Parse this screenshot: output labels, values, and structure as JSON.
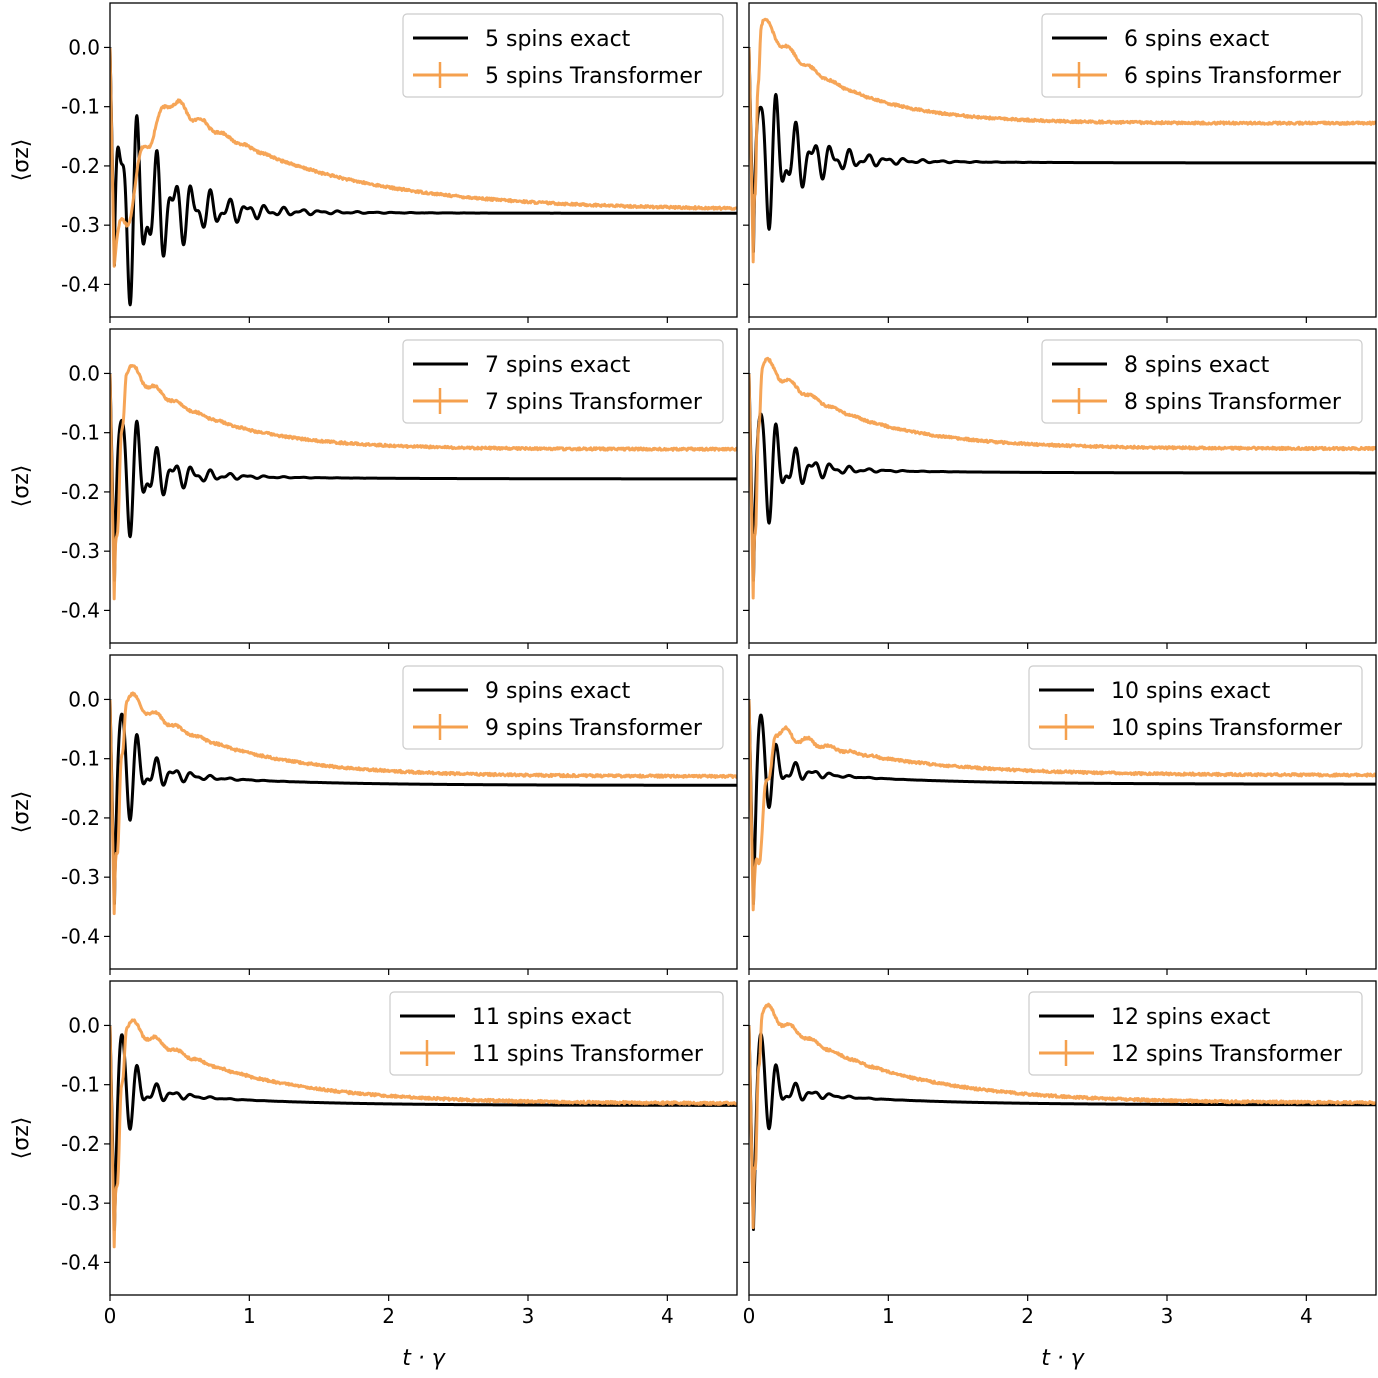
{
  "figure": {
    "xlabel": "t · γ",
    "ylabel": "⟨σz⟩",
    "xticks": [
      0,
      1,
      2,
      3,
      4
    ],
    "yticks": [
      0.0,
      -0.1,
      -0.2,
      -0.3,
      -0.4
    ],
    "ytick_labels": [
      "0.0",
      "-0.1",
      "-0.2",
      "-0.3",
      "-0.4"
    ]
  },
  "colors": {
    "exact": "#000000",
    "transformer": "#f5a04e"
  },
  "chart_data": [
    {
      "type": "line",
      "panel": "5 spins",
      "n": 5,
      "xlim": [
        0,
        4.5
      ],
      "ylim": [
        -0.455,
        0.075
      ],
      "legend": "top-right",
      "series": [
        {
          "name": "5 spins exact",
          "kind": "exact",
          "start": 0.0,
          "final": -0.28,
          "initial": -0.4,
          "tau": 0.55,
          "osc": 0.07,
          "decay": 0.35
        },
        {
          "name": "5 spins Transformer",
          "kind": "transformer",
          "start": 0.0,
          "initial": -0.37,
          "peak": -0.095,
          "peak_t": 0.42,
          "final": -0.275,
          "tau": 1.0
        }
      ]
    },
    {
      "type": "line",
      "panel": "6 spins",
      "n": 6,
      "xlim": [
        0,
        4.5
      ],
      "ylim": [
        -0.455,
        0.075
      ],
      "legend": "top-right",
      "series": [
        {
          "name": "6 spins exact",
          "kind": "exact",
          "start": 0.0,
          "final": -0.195,
          "initial": -0.375,
          "tau": 0.4,
          "osc": 0.05,
          "decay": 0.3
        },
        {
          "name": "6 spins Transformer",
          "kind": "transformer",
          "start": 0.0,
          "initial": -0.36,
          "peak": 0.045,
          "peak_t": 0.05,
          "final": -0.128,
          "tau": 0.55
        }
      ]
    },
    {
      "type": "line",
      "panel": "7 spins",
      "n": 7,
      "xlim": [
        0,
        4.5
      ],
      "ylim": [
        -0.455,
        0.075
      ],
      "legend": "top-right",
      "series": [
        {
          "name": "7 spins exact",
          "kind": "exact",
          "start": 0.0,
          "final": -0.178,
          "initial": -0.38,
          "tau": 0.35,
          "osc": 0.045,
          "decay": 0.25
        },
        {
          "name": "7 spins Transformer",
          "kind": "transformer",
          "start": 0.0,
          "initial": -0.38,
          "peak": 0.01,
          "peak_t": 0.09,
          "final": -0.128,
          "tau": 0.6
        }
      ]
    },
    {
      "type": "line",
      "panel": "8 spins",
      "n": 8,
      "xlim": [
        0,
        4.5
      ],
      "ylim": [
        -0.455,
        0.075
      ],
      "legend": "top-right",
      "series": [
        {
          "name": "8 spins exact",
          "kind": "exact",
          "start": 0.0,
          "final": -0.168,
          "initial": -0.38,
          "tau": 0.3,
          "osc": 0.04,
          "decay": 0.22
        },
        {
          "name": "8 spins Transformer",
          "kind": "transformer",
          "start": 0.0,
          "initial": -0.38,
          "peak": 0.02,
          "peak_t": 0.06,
          "final": -0.127,
          "tau": 0.65
        }
      ]
    },
    {
      "type": "line",
      "panel": "9 spins",
      "n": 9,
      "xlim": [
        0,
        4.5
      ],
      "ylim": [
        -0.455,
        0.075
      ],
      "legend": "top-right",
      "series": [
        {
          "name": "9 spins exact",
          "kind": "exact",
          "start": 0.0,
          "final": -0.145,
          "initial": -0.375,
          "tau": 0.28,
          "osc": 0.035,
          "decay": 0.2
        },
        {
          "name": "9 spins Transformer",
          "kind": "transformer",
          "start": 0.0,
          "initial": -0.36,
          "peak": 0.005,
          "peak_t": 0.09,
          "final": -0.13,
          "tau": 0.7
        }
      ]
    },
    {
      "type": "line",
      "panel": "10 spins",
      "n": 10,
      "xlim": [
        0,
        4.5
      ],
      "ylim": [
        -0.455,
        0.075
      ],
      "legend": "top-right",
      "series": [
        {
          "name": "10 spins exact",
          "kind": "exact",
          "start": 0.0,
          "final": -0.143,
          "initial": -0.375,
          "tau": 0.25,
          "osc": 0.025,
          "decay": 0.18
        },
        {
          "name": "10 spins Transformer",
          "kind": "transformer",
          "start": 0.0,
          "initial": -0.355,
          "peak": -0.055,
          "peak_t": 0.18,
          "final": -0.128,
          "tau": 0.8
        }
      ]
    },
    {
      "type": "line",
      "panel": "11 spins",
      "n": 11,
      "xlim": [
        0,
        4.5
      ],
      "ylim": [
        -0.455,
        0.075
      ],
      "legend": "top-right",
      "series": [
        {
          "name": "11 spins exact",
          "kind": "exact",
          "start": 0.0,
          "final": -0.135,
          "initial": -0.375,
          "tau": 0.25,
          "osc": 0.025,
          "decay": 0.18
        },
        {
          "name": "11 spins Transformer",
          "kind": "transformer",
          "start": 0.0,
          "initial": -0.375,
          "peak": 0.003,
          "peak_t": 0.09,
          "final": -0.132,
          "tau": 0.8
        }
      ]
    },
    {
      "type": "line",
      "panel": "12 spins",
      "n": 12,
      "xlim": [
        0,
        4.5
      ],
      "ylim": [
        -0.455,
        0.075
      ],
      "legend": "top-right",
      "series": [
        {
          "name": "12 spins exact",
          "kind": "exact",
          "start": 0.0,
          "final": -0.134,
          "initial": -0.375,
          "tau": 0.25,
          "osc": 0.025,
          "decay": 0.18
        },
        {
          "name": "12 spins Transformer",
          "kind": "transformer",
          "start": 0.0,
          "initial": -0.34,
          "peak": 0.03,
          "peak_t": 0.06,
          "final": -0.131,
          "tau": 0.8
        }
      ]
    }
  ]
}
